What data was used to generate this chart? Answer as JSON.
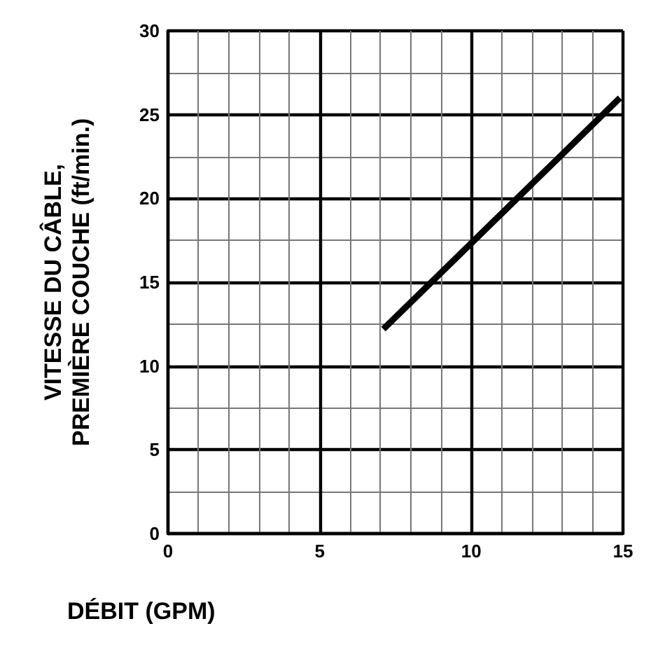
{
  "chart_data": {
    "type": "line",
    "xlabel": "DÉBIT (GPM)",
    "ylabel": "VITESSE DU CÂBLE,\nPREMIÈRE COUCHE (ft/min.)",
    "series": [
      {
        "color": "#000000",
        "x": [
          7.1,
          14.9
        ],
        "values": [
          12.2,
          26.0
        ]
      }
    ],
    "xlim": [
      0,
      15
    ],
    "xticks": [
      0,
      5,
      10,
      15
    ],
    "ylim": [
      0,
      30
    ],
    "yticks": [
      0,
      5,
      10,
      15,
      20,
      25,
      30
    ],
    "grid": true,
    "marker": "none",
    "line_style": "solid"
  }
}
